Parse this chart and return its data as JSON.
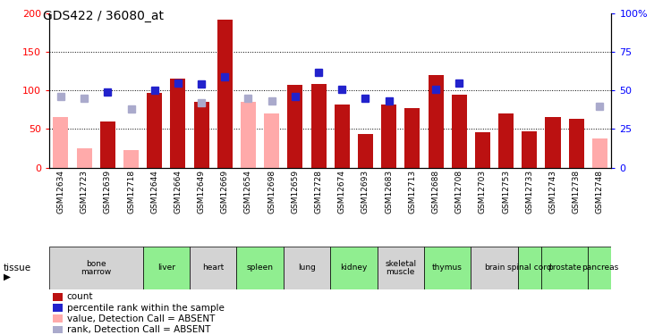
{
  "title": "GDS422 / 36080_at",
  "samples": [
    "GSM12634",
    "GSM12723",
    "GSM12639",
    "GSM12718",
    "GSM12644",
    "GSM12664",
    "GSM12649",
    "GSM12669",
    "GSM12654",
    "GSM12698",
    "GSM12659",
    "GSM12728",
    "GSM12674",
    "GSM12693",
    "GSM12683",
    "GSM12713",
    "GSM12688",
    "GSM12708",
    "GSM12703",
    "GSM12753",
    "GSM12733",
    "GSM12743",
    "GSM12738",
    "GSM12748"
  ],
  "count_values": [
    null,
    null,
    60,
    null,
    97,
    115,
    85,
    192,
    null,
    null,
    107,
    108,
    82,
    44,
    82,
    77,
    120,
    95,
    46,
    70,
    47,
    65,
    63,
    null
  ],
  "count_absent": [
    65,
    25,
    null,
    23,
    null,
    null,
    null,
    null,
    85,
    70,
    null,
    null,
    null,
    null,
    null,
    null,
    null,
    null,
    null,
    null,
    null,
    null,
    null,
    38
  ],
  "pct_present": [
    null,
    null,
    49,
    null,
    50,
    55,
    54,
    59,
    null,
    null,
    46,
    62,
    51,
    45,
    43,
    null,
    51,
    55,
    null,
    null,
    null,
    null,
    null,
    null
  ],
  "pct_absent": [
    46,
    45,
    null,
    38,
    null,
    null,
    42,
    null,
    45,
    43,
    null,
    null,
    null,
    null,
    null,
    null,
    null,
    null,
    null,
    null,
    null,
    null,
    null,
    40
  ],
  "tissues": [
    {
      "name": "bone\nmarrow",
      "start": 0,
      "end": 4,
      "color": "#d3d3d3"
    },
    {
      "name": "liver",
      "start": 4,
      "end": 6,
      "color": "#90ee90"
    },
    {
      "name": "heart",
      "start": 6,
      "end": 8,
      "color": "#d3d3d3"
    },
    {
      "name": "spleen",
      "start": 8,
      "end": 10,
      "color": "#90ee90"
    },
    {
      "name": "lung",
      "start": 10,
      "end": 12,
      "color": "#d3d3d3"
    },
    {
      "name": "kidney",
      "start": 12,
      "end": 14,
      "color": "#90ee90"
    },
    {
      "name": "skeletal\nmuscle",
      "start": 14,
      "end": 16,
      "color": "#d3d3d3"
    },
    {
      "name": "thymus",
      "start": 16,
      "end": 18,
      "color": "#90ee90"
    },
    {
      "name": "brain",
      "start": 18,
      "end": 20,
      "color": "#d3d3d3"
    },
    {
      "name": "spinal cord",
      "start": 20,
      "end": 21,
      "color": "#90ee90"
    },
    {
      "name": "prostate",
      "start": 21,
      "end": 23,
      "color": "#90ee90"
    },
    {
      "name": "pancreas",
      "start": 23,
      "end": 24,
      "color": "#90ee90"
    }
  ],
  "ylim_left": [
    0,
    200
  ],
  "ylim_right": [
    0,
    100
  ],
  "yticks_left": [
    0,
    50,
    100,
    150,
    200
  ],
  "yticks_right": [
    0,
    25,
    50,
    75,
    100
  ],
  "bar_color_present": "#bb1111",
  "bar_color_absent": "#ffaaaa",
  "rank_color_present": "#2222cc",
  "rank_color_absent": "#aaaacc",
  "bar_width": 0.65,
  "legend_items": [
    {
      "label": "count",
      "color": "#bb1111"
    },
    {
      "label": "percentile rank within the sample",
      "color": "#2222cc"
    },
    {
      "label": "value, Detection Call = ABSENT",
      "color": "#ffaaaa"
    },
    {
      "label": "rank, Detection Call = ABSENT",
      "color": "#aaaacc"
    }
  ]
}
